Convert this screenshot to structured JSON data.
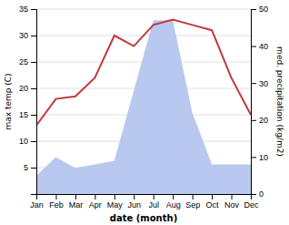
{
  "chart_data": {
    "type": "line",
    "categories": [
      "Jan",
      "Feb",
      "Mar",
      "Apr",
      "May",
      "Jun",
      "Jul",
      "Aug",
      "Sep",
      "Oct",
      "Nov",
      "Dec"
    ],
    "xlabel": "date (month)",
    "ylabel": "max temp (C)",
    "y2label": "med. precipitation (kg/m2)",
    "ylim": [
      0,
      35
    ],
    "yticks": [
      5,
      10,
      15,
      20,
      25,
      30,
      35
    ],
    "y2lim": [
      0,
      50
    ],
    "y2ticks": [
      0,
      10,
      20,
      30,
      40,
      50
    ],
    "grid": true,
    "series": [
      {
        "type": "area",
        "axis": "y2",
        "color": "#b8c8ee",
        "values": [
          5,
          10,
          7,
          8,
          9,
          28,
          47,
          47,
          22,
          8,
          8,
          8
        ]
      },
      {
        "type": "line",
        "color": "#c0393b",
        "values": [
          13,
          18,
          18.5,
          22,
          30,
          28,
          32,
          33,
          32,
          31,
          22,
          15
        ]
      }
    ]
  }
}
